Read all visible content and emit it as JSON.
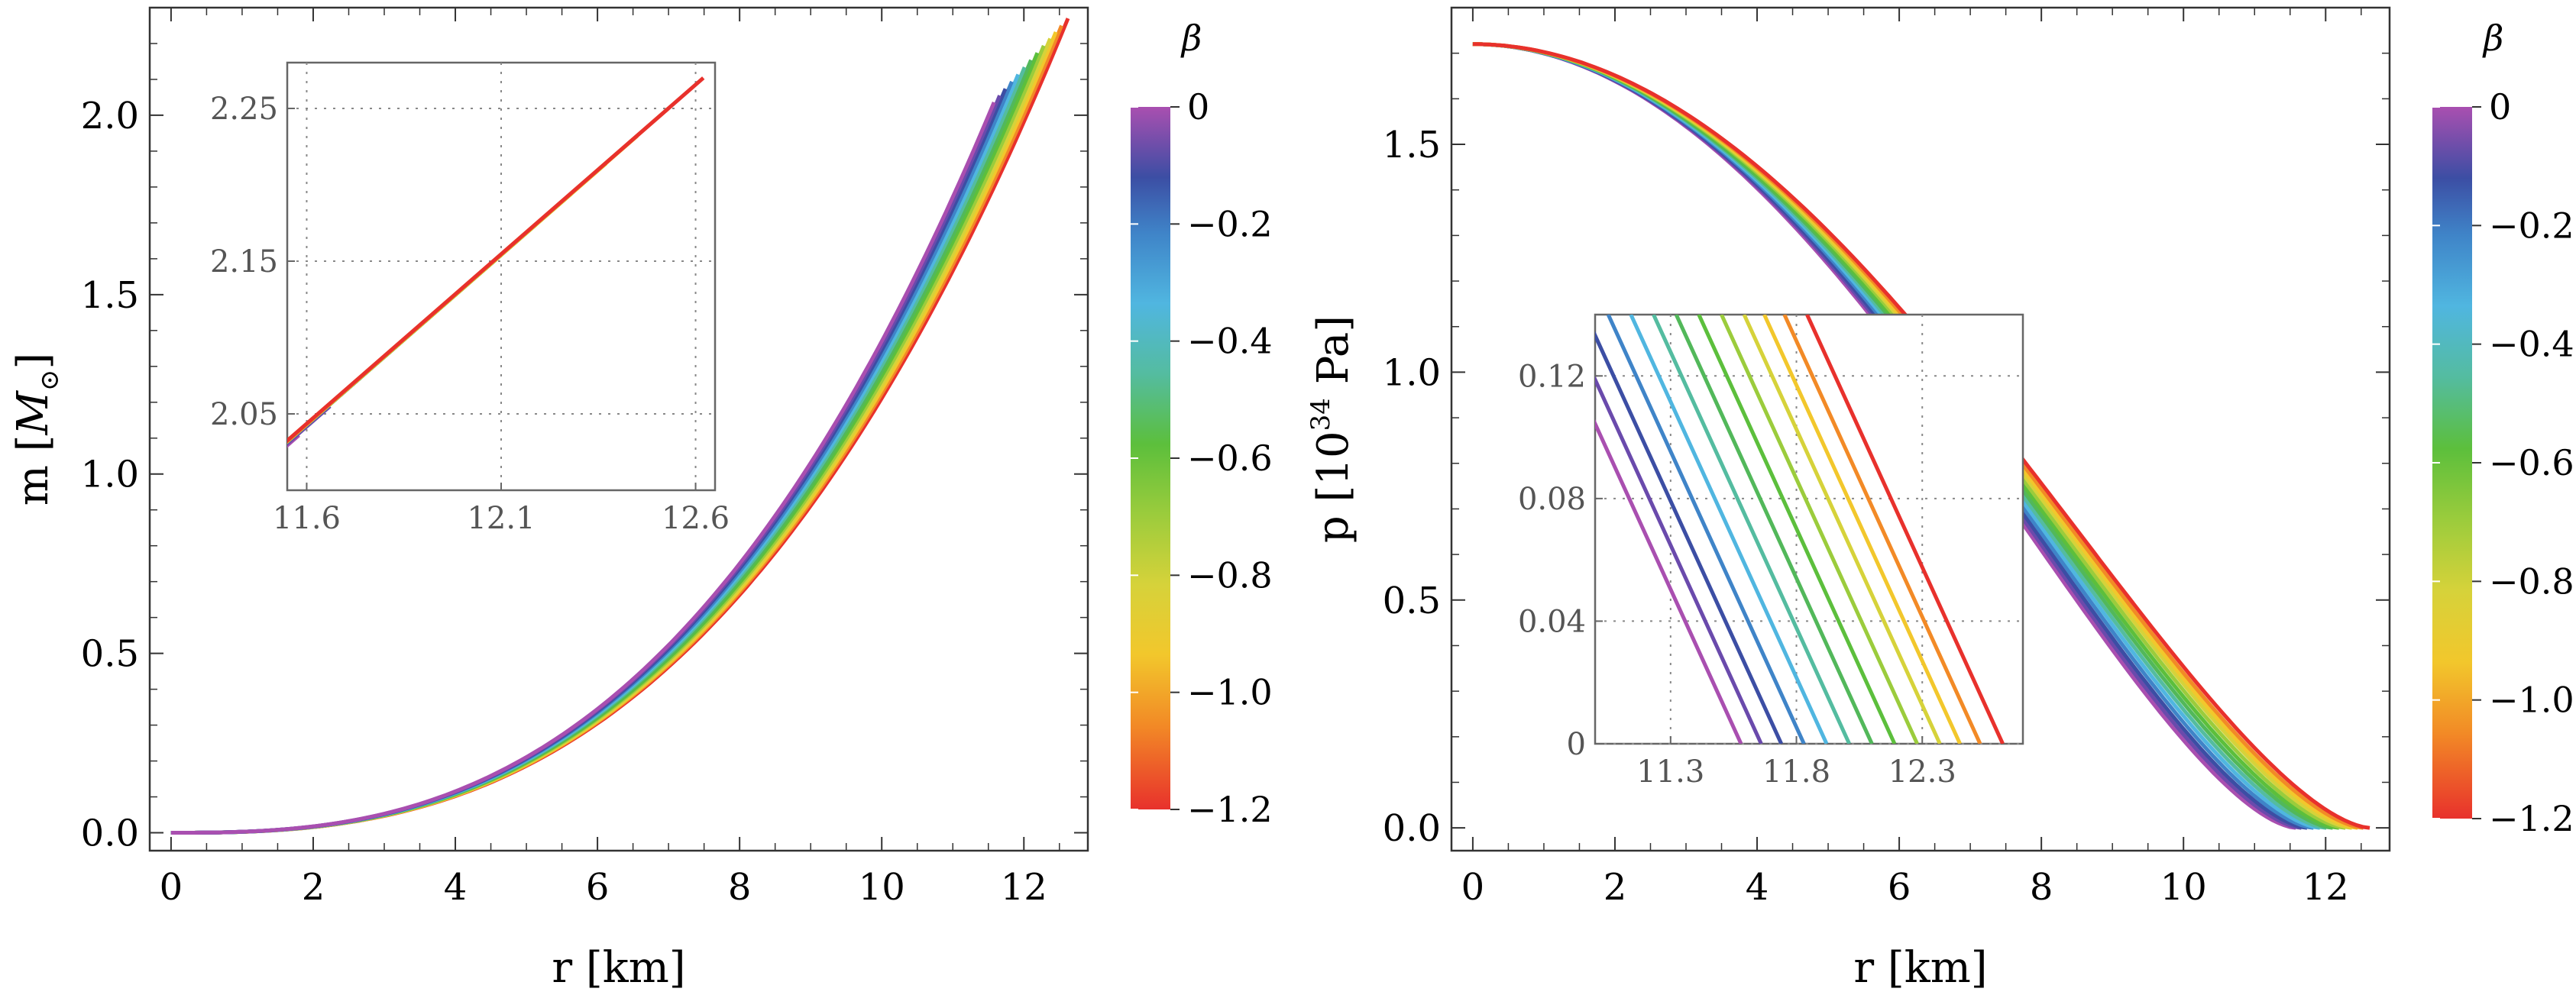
{
  "chart_data": [
    {
      "type": "line",
      "panel": "left",
      "xlabel": "r [km]",
      "ylabel": "m [M⊙]",
      "xlim": [
        -0.3,
        12.9
      ],
      "ylim": [
        -0.05,
        2.3
      ],
      "xticks": [
        "0",
        "2",
        "4",
        "6",
        "8",
        "10",
        "12"
      ],
      "yticks": [
        "0.0",
        "0.5",
        "1.0",
        "1.5",
        "2.0"
      ],
      "grid": false,
      "series_note": "colored by β",
      "series": [
        {
          "beta": 0.0,
          "color": "#a94fb0",
          "r_end": 11.58,
          "m_end": 2.036
        },
        {
          "beta": -0.1,
          "color": "#6a4aac",
          "r_end": 11.66,
          "m_end": 2.055
        },
        {
          "beta": -0.2,
          "color": "#3c4ea4",
          "r_end": 11.74,
          "m_end": 2.074
        },
        {
          "beta": -0.3,
          "color": "#3f84c8",
          "r_end": 11.83,
          "m_end": 2.094
        },
        {
          "beta": -0.4,
          "color": "#50b6e0",
          "r_end": 11.92,
          "m_end": 2.114
        },
        {
          "beta": -0.5,
          "color": "#54bca0",
          "r_end": 12.01,
          "m_end": 2.134
        },
        {
          "beta": -0.6,
          "color": "#52b85a",
          "r_end": 12.1,
          "m_end": 2.154
        },
        {
          "beta": -0.7,
          "color": "#5cbf3c",
          "r_end": 12.19,
          "m_end": 2.174
        },
        {
          "beta": -0.8,
          "color": "#9bcc3c",
          "r_end": 12.28,
          "m_end": 2.194
        },
        {
          "beta": -0.9,
          "color": "#d6d23a",
          "r_end": 12.37,
          "m_end": 2.214
        },
        {
          "beta": -1.0,
          "color": "#f2c72c",
          "r_end": 12.45,
          "m_end": 2.232
        },
        {
          "beta": -1.1,
          "color": "#f28a26",
          "r_end": 12.53,
          "m_end": 2.25
        },
        {
          "beta": -1.2,
          "color": "#e8312c",
          "r_end": 12.62,
          "m_end": 2.27
        }
      ],
      "inset": {
        "xlim": [
          11.55,
          12.65
        ],
        "ylim": [
          2.0,
          2.28
        ],
        "xticks": [
          "11.6",
          "12.1",
          "12.6"
        ],
        "yticks": [
          "2.05",
          "2.15",
          "2.25"
        ],
        "grid": true
      },
      "colorbar": {
        "label": "β",
        "range": [
          -1.2,
          0
        ],
        "ticks": [
          "0",
          "−0.2",
          "−0.4",
          "−0.6",
          "−0.8",
          "−1.0",
          "−1.2"
        ]
      }
    },
    {
      "type": "line",
      "panel": "right",
      "xlabel": "r [km]",
      "ylabel": "p [10³⁴ Pa]",
      "xlim": [
        -0.3,
        12.9
      ],
      "ylim": [
        -0.05,
        1.8
      ],
      "xticks": [
        "0",
        "2",
        "4",
        "6",
        "8",
        "10",
        "12"
      ],
      "yticks": [
        "0.0",
        "0.5",
        "1.0",
        "1.5"
      ],
      "p_center": 1.72,
      "grid": false,
      "inset": {
        "xlim": [
          11.0,
          12.7
        ],
        "ylim": [
          0.0,
          0.14
        ],
        "xticks": [
          "11.3",
          "11.8",
          "12.3"
        ],
        "yticks": [
          "0",
          "0.04",
          "0.08",
          "0.12"
        ],
        "grid": true
      },
      "colorbar": {
        "label": "β",
        "range": [
          -1.2,
          0
        ],
        "ticks": [
          "0",
          "−0.2",
          "−0.4",
          "−0.6",
          "−0.8",
          "−1.0",
          "−1.2"
        ]
      }
    }
  ]
}
